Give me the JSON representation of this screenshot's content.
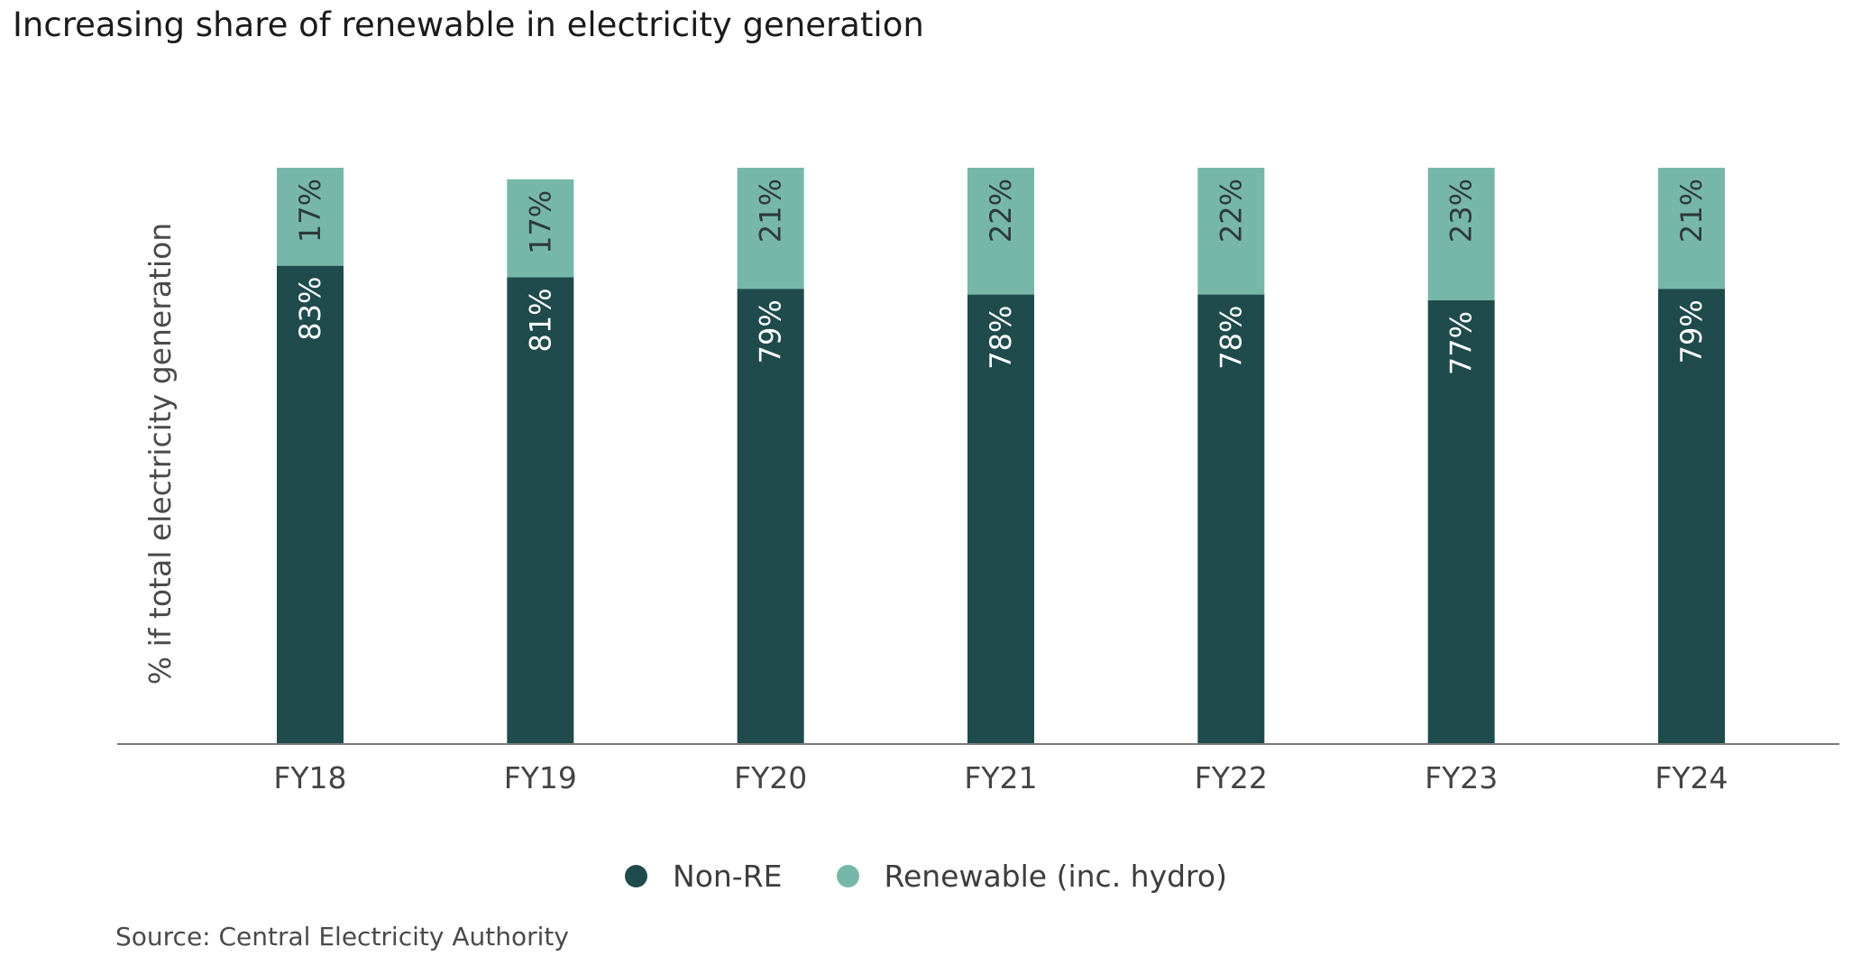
{
  "title": "Increasing share of renewable in electricity generation",
  "source": "Source: Central Electricity Authority",
  "chart_data": {
    "type": "bar",
    "stacked": true,
    "title": "Increasing share of renewable in electricity generation",
    "xlabel": "",
    "ylabel": "% if total electricity generation",
    "ylim": [
      0,
      100
    ],
    "grid": false,
    "legend_position": "bottom",
    "categories": [
      "FY18",
      "FY19",
      "FY20",
      "FY21",
      "FY22",
      "FY23",
      "FY24"
    ],
    "series": [
      {
        "name": "Non-RE",
        "values": [
          83,
          81,
          79,
          78,
          78,
          77,
          79
        ],
        "labels": [
          "83%",
          "81%",
          "79%",
          "78%",
          "78%",
          "77%",
          "79%"
        ],
        "color": "#1f4b4c",
        "label_color": "#ffffff"
      },
      {
        "name": "Renewable (inc. hydro)",
        "values": [
          17,
          17,
          21,
          22,
          22,
          23,
          21
        ],
        "labels": [
          "17%",
          "17%",
          "21%",
          "22%",
          "22%",
          "23%",
          "21%"
        ],
        "color": "#76b7aa",
        "label_color": "#2e3a3a"
      }
    ],
    "axis_color": "#7a7a7a",
    "tick_label_color": "#444444"
  }
}
